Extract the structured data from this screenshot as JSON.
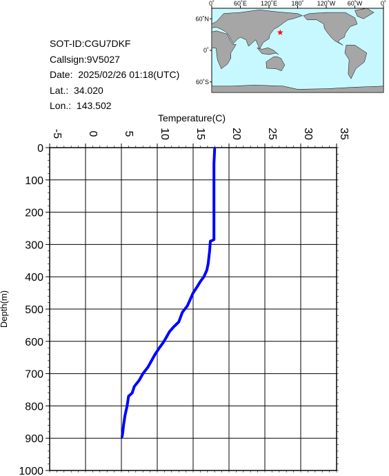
{
  "info": {
    "sot_id": "SOT-ID:CGU7DKF",
    "callsign": "Callsign:9V5027",
    "date": "Date:  2025/02/26 01:18(UTC)",
    "lat": "Lat.:  34.020",
    "lon": "Lon.:  143.502"
  },
  "map": {
    "top_labels": [
      "0˚",
      "60˚E",
      "120˚E",
      "180˚",
      "120˚W",
      "60˚W",
      "0˚"
    ],
    "left_labels": [
      "60˚N",
      "0˚",
      "60˚S"
    ],
    "ocean_color": "#c8f8ff",
    "land_color": "#a6a6a6",
    "marker_color": "#ff0000",
    "marker": {
      "lat": 34.02,
      "lon": 143.502
    }
  },
  "chart_data": {
    "type": "line",
    "title": "",
    "xlabel": "Temperature(C)",
    "ylabel": "Depth(m)",
    "xlim": [
      -5,
      35
    ],
    "ylim": [
      0,
      1000
    ],
    "x_ticks": [
      -5,
      0,
      5,
      10,
      15,
      20,
      25,
      30,
      35
    ],
    "y_ticks": [
      0,
      100,
      200,
      300,
      400,
      500,
      600,
      700,
      800,
      900,
      1000
    ],
    "grid": true,
    "series": [
      {
        "name": "",
        "color": "#0000ff",
        "points": [
          [
            18.0,
            5
          ],
          [
            17.9,
            50
          ],
          [
            17.9,
            100
          ],
          [
            17.9,
            150
          ],
          [
            17.9,
            200
          ],
          [
            17.9,
            250
          ],
          [
            17.9,
            285
          ],
          [
            17.4,
            290
          ],
          [
            17.3,
            320
          ],
          [
            17.1,
            360
          ],
          [
            16.9,
            380
          ],
          [
            16.5,
            400
          ],
          [
            16.0,
            415
          ],
          [
            15.6,
            430
          ],
          [
            15.0,
            450
          ],
          [
            14.2,
            490
          ],
          [
            13.5,
            510
          ],
          [
            13.0,
            540
          ],
          [
            12.3,
            555
          ],
          [
            11.7,
            570
          ],
          [
            11.2,
            590
          ],
          [
            10.8,
            605
          ],
          [
            10.3,
            620
          ],
          [
            9.7,
            640
          ],
          [
            9.2,
            660
          ],
          [
            8.7,
            680
          ],
          [
            8.0,
            700
          ],
          [
            7.5,
            720
          ],
          [
            6.8,
            740
          ],
          [
            6.5,
            760
          ],
          [
            6.0,
            770
          ],
          [
            5.8,
            800
          ],
          [
            5.5,
            830
          ],
          [
            5.3,
            860
          ],
          [
            5.2,
            880
          ],
          [
            5.1,
            895
          ]
        ]
      }
    ]
  }
}
